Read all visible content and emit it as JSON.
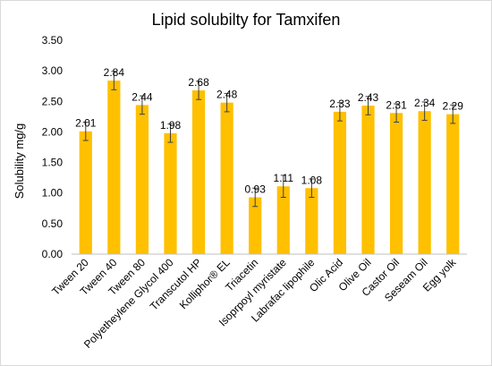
{
  "chart_data": {
    "type": "bar",
    "title": "Lipid solubilty for Tamxifen",
    "ylabel": "Solubility mg/g",
    "xlabel": "",
    "ylim": [
      0,
      3.5
    ],
    "ytick_step": 0.5,
    "ytick_labels": [
      "0.00",
      "0.50",
      "1.00",
      "1.50",
      "2.00",
      "2.50",
      "3.00",
      "3.50"
    ],
    "categories": [
      "Tween 20",
      "Tween 40",
      "Tween 80",
      "Polyetheylene Glycol 400",
      "Transcutol HP",
      "Kolliphor® EL",
      "Triacetin",
      "Isoprpoyl myristate",
      "Labrafac lipophile",
      "Olic Acid",
      "Olive Oil",
      "Castor Oil",
      "Seseam Oil",
      "Egg yolk"
    ],
    "values": [
      2.01,
      2.84,
      2.44,
      1.98,
      2.68,
      2.48,
      0.93,
      1.11,
      1.08,
      2.33,
      2.43,
      2.31,
      2.34,
      2.29
    ],
    "value_labels": [
      "2.01",
      "2.84",
      "2.44",
      "1.98",
      "2.68",
      "2.48",
      "0.93",
      "1.11",
      "1.08",
      "2.33",
      "2.43",
      "2.31",
      "2.34",
      "2.29"
    ],
    "error": [
      0.15,
      0.15,
      0.15,
      0.15,
      0.15,
      0.15,
      0.15,
      0.18,
      0.15,
      0.15,
      0.15,
      0.15,
      0.15,
      0.15
    ],
    "bar_color": "#FFC000",
    "grid": false,
    "legend": "none"
  }
}
